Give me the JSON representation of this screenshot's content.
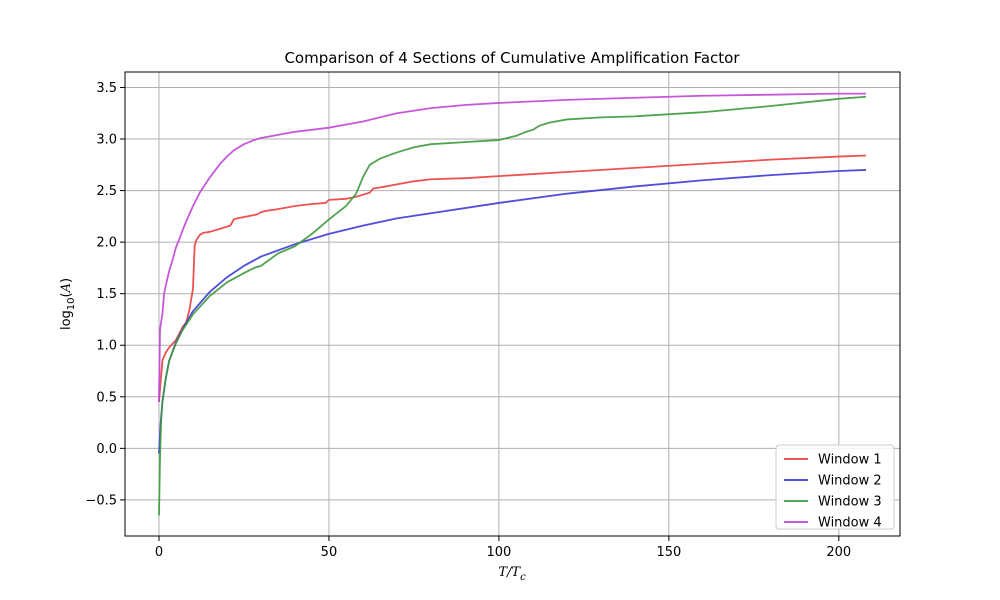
{
  "chart_data": {
    "type": "line",
    "title": "Comparison of 4 Sections of Cumulative Amplification Factor",
    "xlabel": "T/T_c",
    "ylabel": "log10(A)",
    "xlim": [
      -10,
      218
    ],
    "ylim": [
      -0.85,
      3.65
    ],
    "x_ticks": [
      0,
      50,
      100,
      150,
      200
    ],
    "y_ticks": [
      -0.5,
      0.0,
      0.5,
      1.0,
      1.5,
      2.0,
      2.5,
      3.0,
      3.5
    ],
    "x_tick_labels": [
      "0",
      "50",
      "100",
      "150",
      "200"
    ],
    "y_tick_labels": [
      "−0.5",
      "0.0",
      "0.5",
      "1.0",
      "1.5",
      "2.0",
      "2.5",
      "3.0",
      "3.5"
    ],
    "grid": true,
    "legend_position": "lower-right",
    "series": [
      {
        "name": "Window 1",
        "color": "#e8403e",
        "x": [
          0,
          0.5,
          1,
          2,
          3,
          5,
          7,
          8,
          9,
          10,
          10.5,
          11,
          12,
          13,
          15,
          18,
          21,
          22,
          23,
          26,
          29,
          30,
          31,
          35,
          40,
          45,
          49,
          50,
          55,
          58,
          60,
          62,
          63,
          65,
          70,
          75,
          80,
          90,
          100,
          120,
          140,
          160,
          180,
          200,
          208
        ],
        "y": [
          0.45,
          0.65,
          0.85,
          0.93,
          0.98,
          1.05,
          1.18,
          1.22,
          1.35,
          1.55,
          1.97,
          2.02,
          2.07,
          2.09,
          2.1,
          2.13,
          2.16,
          2.22,
          2.23,
          2.25,
          2.27,
          2.29,
          2.3,
          2.32,
          2.35,
          2.37,
          2.38,
          2.41,
          2.42,
          2.44,
          2.46,
          2.48,
          2.52,
          2.53,
          2.56,
          2.59,
          2.61,
          2.62,
          2.64,
          2.68,
          2.72,
          2.76,
          2.8,
          2.83,
          2.84
        ]
      },
      {
        "name": "Window 2",
        "color": "#3b3bd6",
        "x": [
          0,
          0.5,
          1,
          2,
          3,
          5,
          7,
          10,
          15,
          20,
          25,
          30,
          40,
          50,
          60,
          70,
          80,
          100,
          120,
          140,
          160,
          180,
          200,
          208
        ],
        "y": [
          -0.05,
          0.25,
          0.45,
          0.68,
          0.85,
          1.03,
          1.16,
          1.33,
          1.52,
          1.66,
          1.77,
          1.86,
          1.98,
          2.08,
          2.16,
          2.23,
          2.28,
          2.38,
          2.47,
          2.54,
          2.6,
          2.65,
          2.69,
          2.7
        ]
      },
      {
        "name": "Window 3",
        "color": "#3d9a3d",
        "x": [
          0,
          0.3,
          0.6,
          1,
          2,
          3,
          5,
          7,
          10,
          15,
          20,
          25,
          28,
          30,
          35,
          40,
          45,
          50,
          55,
          58,
          60,
          62,
          65,
          70,
          75,
          80,
          90,
          95,
          100,
          105,
          108,
          110,
          112,
          115,
          120,
          130,
          140,
          160,
          180,
          200,
          208
        ],
        "y": [
          -0.65,
          -0.1,
          0.25,
          0.45,
          0.68,
          0.85,
          1.02,
          1.15,
          1.3,
          1.48,
          1.61,
          1.7,
          1.75,
          1.77,
          1.89,
          1.96,
          2.08,
          2.22,
          2.35,
          2.47,
          2.63,
          2.75,
          2.81,
          2.87,
          2.92,
          2.95,
          2.97,
          2.98,
          2.99,
          3.03,
          3.07,
          3.09,
          3.13,
          3.16,
          3.19,
          3.21,
          3.22,
          3.26,
          3.32,
          3.39,
          3.41
        ]
      },
      {
        "name": "Window 4",
        "color": "#c046d6",
        "x": [
          0,
          0.3,
          0.6,
          1,
          1.5,
          2,
          3,
          4,
          5,
          6,
          7,
          8,
          10,
          12,
          15,
          18,
          20,
          22,
          25,
          28,
          30,
          35,
          40,
          50,
          60,
          70,
          80,
          90,
          100,
          120,
          140,
          160,
          180,
          200,
          208
        ],
        "y": [
          0.45,
          1.15,
          1.22,
          1.3,
          1.5,
          1.58,
          1.72,
          1.83,
          1.95,
          2.03,
          2.12,
          2.2,
          2.35,
          2.48,
          2.63,
          2.76,
          2.83,
          2.89,
          2.95,
          2.99,
          3.01,
          3.04,
          3.07,
          3.11,
          3.17,
          3.25,
          3.3,
          3.33,
          3.35,
          3.38,
          3.4,
          3.42,
          3.43,
          3.44,
          3.44
        ]
      }
    ]
  }
}
